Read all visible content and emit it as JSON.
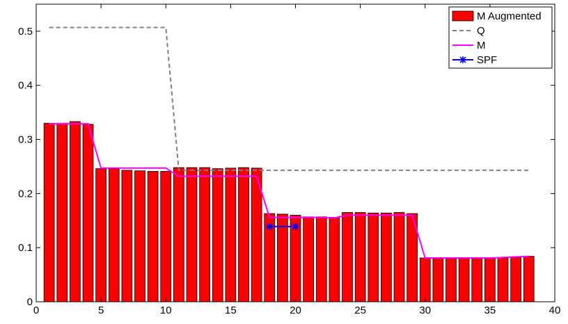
{
  "chart_data": {
    "type": "bar",
    "title": "",
    "xlabel": "",
    "ylabel": "",
    "xlim": [
      0,
      40
    ],
    "ylim": [
      0,
      0.55
    ],
    "xticks": [
      0,
      5,
      10,
      15,
      20,
      25,
      30,
      35,
      40
    ],
    "yticks": [
      0,
      0.1,
      0.2,
      0.3,
      0.4,
      0.5
    ],
    "xtick_labels": [
      "0",
      "5",
      "10",
      "15",
      "20",
      "25",
      "30",
      "35",
      "40"
    ],
    "ytick_labels": [
      "0",
      "0.1",
      "0.2",
      "0.3",
      "0.4",
      "0.5"
    ],
    "grid": false,
    "legend_position": "top-right",
    "series": [
      {
        "name": "M Augmented",
        "type": "bar",
        "color": "#ff0000",
        "x": [
          1,
          2,
          3,
          4,
          5,
          6,
          7,
          8,
          9,
          10,
          11,
          12,
          13,
          14,
          15,
          16,
          17,
          18,
          19,
          20,
          21,
          22,
          23,
          24,
          25,
          26,
          27,
          28,
          29,
          30,
          31,
          32,
          33,
          34,
          35,
          36,
          37,
          38
        ],
        "values": [
          0.33,
          0.33,
          0.333,
          0.328,
          0.246,
          0.246,
          0.243,
          0.242,
          0.241,
          0.241,
          0.248,
          0.248,
          0.248,
          0.246,
          0.247,
          0.248,
          0.247,
          0.163,
          0.162,
          0.16,
          0.157,
          0.157,
          0.156,
          0.165,
          0.165,
          0.164,
          0.164,
          0.165,
          0.163,
          0.081,
          0.08,
          0.08,
          0.08,
          0.08,
          0.08,
          0.081,
          0.082,
          0.084
        ]
      },
      {
        "name": "Q",
        "type": "line",
        "style": "dashed",
        "color": "#808080",
        "x": [
          1,
          10,
          11,
          38
        ],
        "values": [
          0.507,
          0.507,
          0.243,
          0.243
        ]
      },
      {
        "name": "M",
        "type": "line",
        "color": "#ff00ff",
        "x": [
          1,
          4,
          5,
          10,
          11,
          17,
          18,
          22,
          23,
          24,
          29,
          30,
          35,
          36,
          38
        ],
        "values": [
          0.329,
          0.329,
          0.247,
          0.247,
          0.232,
          0.232,
          0.156,
          0.156,
          0.155,
          0.16,
          0.16,
          0.081,
          0.081,
          0.082,
          0.084
        ]
      },
      {
        "name": "SPF",
        "type": "line",
        "marker": "star",
        "color": "#0000ff",
        "x": [
          18,
          20
        ],
        "values": [
          0.139,
          0.139
        ]
      }
    ]
  }
}
